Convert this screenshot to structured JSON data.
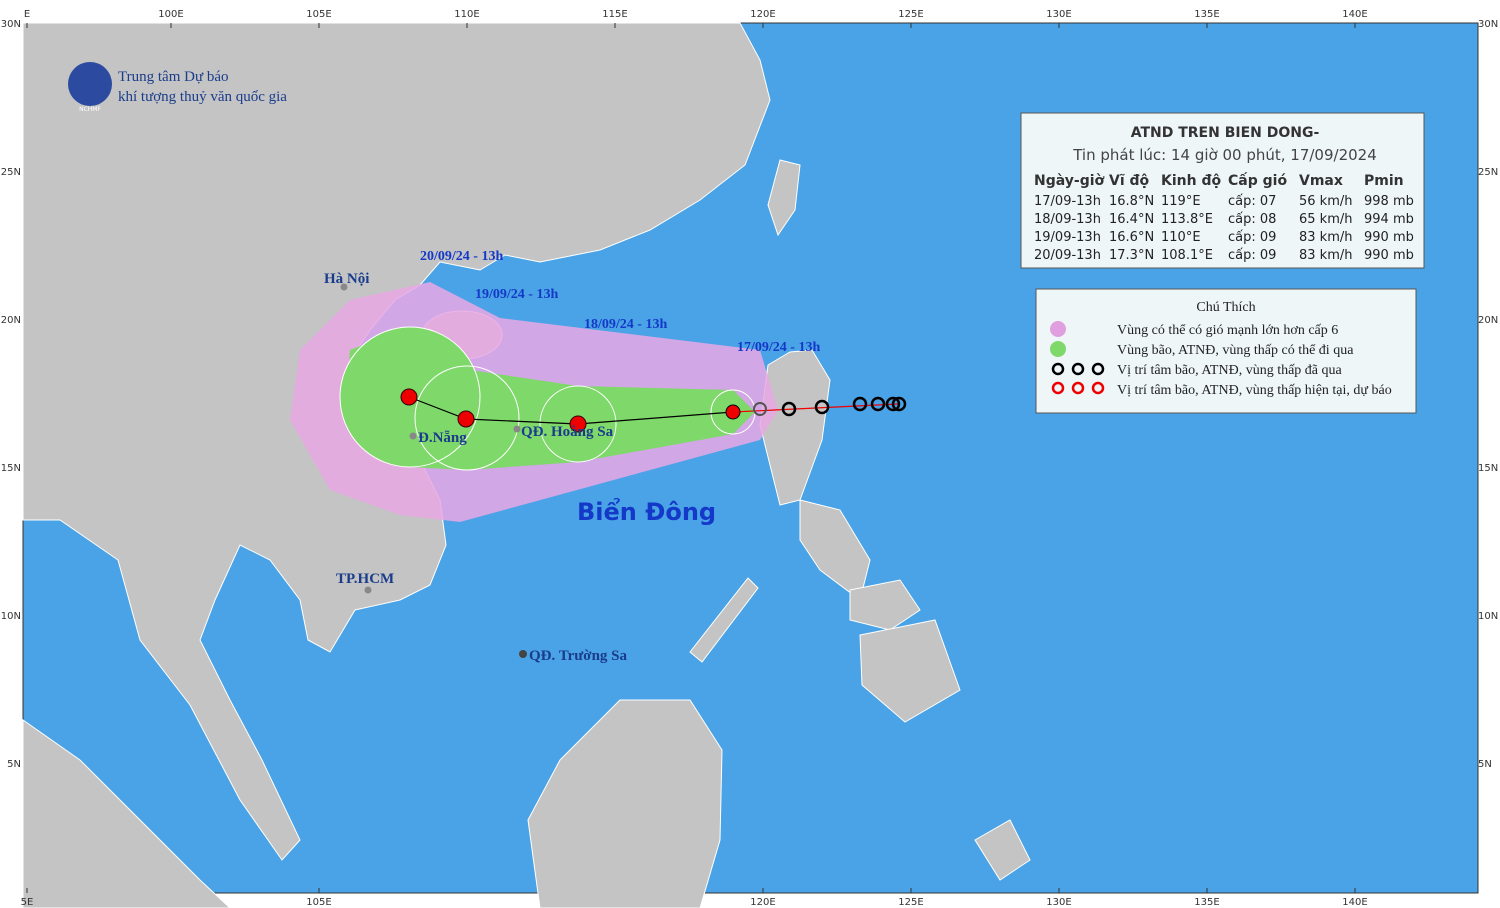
{
  "header": {
    "org_line1": "Trung tâm Dự báo",
    "org_line2": "khí tượng thuỷ văn quốc gia",
    "logo_label": "NCHMF"
  },
  "axes": {
    "top": [
      "E",
      "100E",
      "105E",
      "110E",
      "115E",
      "120E",
      "125E",
      "130E",
      "135E",
      "140E"
    ],
    "bottom": [
      "5E",
      "105E",
      "120E",
      "125E",
      "130E",
      "135E",
      "140E"
    ],
    "left": [
      "30N",
      "25N",
      "20N",
      "15N",
      "10N",
      "5N"
    ],
    "right": [
      "30N",
      "25N",
      "20N",
      "15N",
      "10N",
      "5N"
    ]
  },
  "map_labels": {
    "cities": [
      "Hà Nội",
      "Đ.Nẵng",
      "QĐ. Hoàng Sa",
      "TP.HCM",
      "QĐ. Trường Sa"
    ],
    "sea": "Biển Đông",
    "forecast_times": [
      "20/09/24 - 13h",
      "19/09/24 - 13h",
      "18/09/24 - 13h",
      "17/09/24 - 13h"
    ]
  },
  "info_table": {
    "title": "ATND TREN BIEN DONG-",
    "issued": "Tin phát lúc: 14 giờ 00 phút, 17/09/2024",
    "columns": [
      "Ngày-giờ",
      "Vĩ độ",
      "Kinh độ",
      "Cấp gió",
      "Vmax",
      "Pmin"
    ],
    "rows": [
      [
        "17/09-13h",
        "16.8°N",
        "119°E",
        "cấp: 07",
        "56 km/h",
        "998 mb"
      ],
      [
        "18/09-13h",
        "16.4°N",
        "113.8°E",
        "cấp: 08",
        "65 km/h",
        "994 mb"
      ],
      [
        "19/09-13h",
        "16.6°N",
        "110°E",
        "cấp: 09",
        "83 km/h",
        "990 mb"
      ],
      [
        "20/09-13h",
        "17.3°N",
        "108.1°E",
        "cấp: 09",
        "83 km/h",
        "990 mb"
      ]
    ]
  },
  "legend": {
    "title": "Chú Thích",
    "items": [
      "Vùng có thể có gió mạnh lớn hơn cấp 6",
      "Vùng bão, ATNĐ, vùng thấp có thể đi qua",
      "Vị trí tâm bão, ATNĐ, vùng thấp đã qua",
      "Vị trí tâm bão, ATNĐ, vùng thấp hiện tại, dự báo"
    ]
  }
}
